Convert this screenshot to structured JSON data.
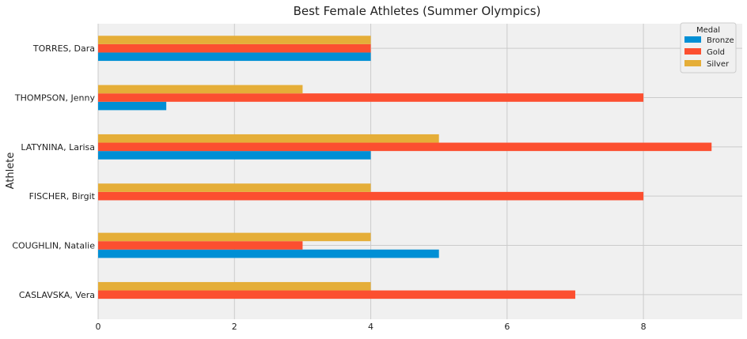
{
  "chart_data": {
    "type": "bar",
    "orientation": "horizontal",
    "title": "Best Female Athletes (Summer Olympics)",
    "xlabel": "",
    "ylabel": "Athlete",
    "categories": [
      "CASLAVSKA, Vera",
      "COUGHLIN, Natalie",
      "FISCHER, Birgit",
      "LATYNINA, Larisa",
      "THOMPSON, Jenny",
      "TORRES, Dara"
    ],
    "series": [
      {
        "name": "Bronze",
        "color": "#008fd5",
        "values": [
          0,
          5,
          0,
          4,
          1,
          4
        ]
      },
      {
        "name": "Gold",
        "color": "#fc4f30",
        "values": [
          7,
          3,
          8,
          9,
          8,
          4
        ]
      },
      {
        "name": "Silver",
        "color": "#e5ae38",
        "values": [
          4,
          4,
          4,
          5,
          3,
          4
        ]
      }
    ],
    "xlim": [
      0,
      9.45
    ],
    "xticks": [
      0,
      2,
      4,
      6,
      8
    ],
    "grid": true,
    "legend": {
      "title": "Medal",
      "placement": "top-right"
    },
    "background": "#f0f0f0",
    "grid_color": "#cbcbcb"
  }
}
